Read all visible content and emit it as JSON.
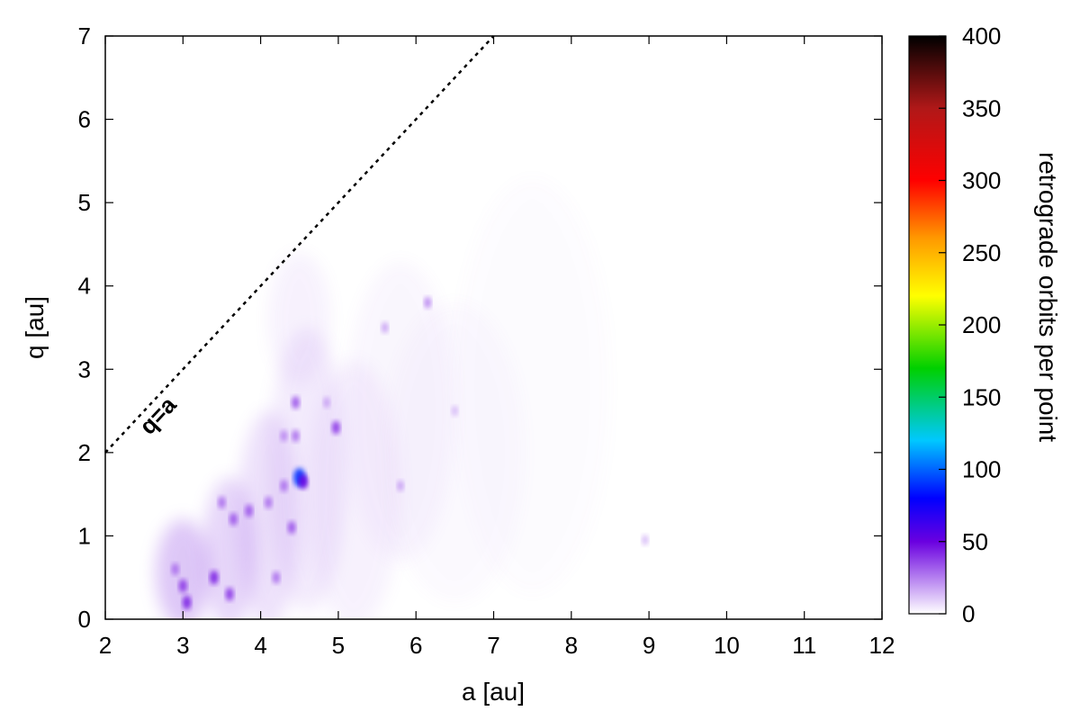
{
  "chart_data": {
    "type": "heatmap",
    "xlabel": "a [au]",
    "ylabel": "q [au]",
    "xlim": [
      2,
      12
    ],
    "ylim": [
      0,
      7
    ],
    "x_ticks": [
      "2",
      "3",
      "4",
      "5",
      "6",
      "7",
      "8",
      "9",
      "10",
      "11",
      "12"
    ],
    "y_ticks": [
      "0",
      "1",
      "2",
      "3",
      "4",
      "5",
      "6",
      "7"
    ],
    "colorbar": {
      "label": "retrograde orbits per point",
      "range": [
        0,
        400
      ],
      "ticks": [
        "0",
        "50",
        "100",
        "150",
        "200",
        "250",
        "300",
        "350",
        "400"
      ],
      "stops": [
        {
          "value": 0,
          "color": "#ffffff"
        },
        {
          "value": 50,
          "color": "#6a00e0"
        },
        {
          "value": 80,
          "color": "#0000ff"
        },
        {
          "value": 120,
          "color": "#00c8ff"
        },
        {
          "value": 170,
          "color": "#00d000"
        },
        {
          "value": 220,
          "color": "#ffff00"
        },
        {
          "value": 260,
          "color": "#ff9900"
        },
        {
          "value": 300,
          "color": "#ff0000"
        },
        {
          "value": 350,
          "color": "#b01818"
        },
        {
          "value": 400,
          "color": "#000000"
        }
      ]
    },
    "boundary_line": {
      "label": "q=a",
      "points": [
        [
          2,
          2
        ],
        [
          7,
          7
        ]
      ],
      "style": "dotted"
    },
    "hotspots": [
      {
        "a": 3.0,
        "q": 0.4,
        "value": 40
      },
      {
        "a": 3.05,
        "q": 0.2,
        "value": 45
      },
      {
        "a": 2.9,
        "q": 0.6,
        "value": 30
      },
      {
        "a": 3.4,
        "q": 0.5,
        "value": 45
      },
      {
        "a": 3.6,
        "q": 0.3,
        "value": 40
      },
      {
        "a": 3.5,
        "q": 1.4,
        "value": 30
      },
      {
        "a": 3.65,
        "q": 1.2,
        "value": 35
      },
      {
        "a": 3.85,
        "q": 1.3,
        "value": 35
      },
      {
        "a": 4.1,
        "q": 1.4,
        "value": 30
      },
      {
        "a": 4.2,
        "q": 0.5,
        "value": 30
      },
      {
        "a": 4.3,
        "q": 1.6,
        "value": 30
      },
      {
        "a": 4.3,
        "q": 2.2,
        "value": 25
      },
      {
        "a": 4.4,
        "q": 1.1,
        "value": 35
      },
      {
        "a": 4.45,
        "q": 2.6,
        "value": 35
      },
      {
        "a": 4.45,
        "q": 2.2,
        "value": 30
      },
      {
        "a": 4.5,
        "q": 1.7,
        "value": 90
      },
      {
        "a": 4.55,
        "q": 1.65,
        "value": 50
      },
      {
        "a": 4.85,
        "q": 2.6,
        "value": 20
      },
      {
        "a": 4.97,
        "q": 2.3,
        "value": 40
      },
      {
        "a": 5.6,
        "q": 3.5,
        "value": 20
      },
      {
        "a": 5.8,
        "q": 1.6,
        "value": 20
      },
      {
        "a": 6.15,
        "q": 3.8,
        "value": 25
      },
      {
        "a": 6.5,
        "q": 2.5,
        "value": 15
      },
      {
        "a": 8.95,
        "q": 0.95,
        "value": 15
      }
    ]
  }
}
